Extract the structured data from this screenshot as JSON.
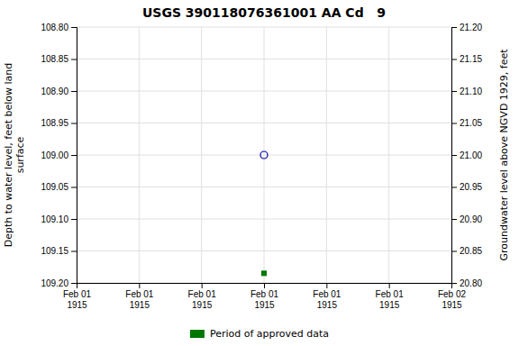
{
  "chart_data": {
    "type": "scatter",
    "title": "USGS 390118076361001 AA Cd   9",
    "ylabel": "Depth to water level, feet below land\nsurface",
    "y2label": "Groundwater level above NGVD 1929, feet",
    "categories": [
      "Feb 01\n1915",
      "Feb 01\n1915",
      "Feb 01\n1915",
      "Feb 01\n1915",
      "Feb 01\n1915",
      "Feb 01\n1915",
      "Feb 02\n1915"
    ],
    "series": [
      {
        "color": "#0000aa",
        "marker": "circle",
        "values": [
          null,
          null,
          null,
          109.0,
          null,
          null,
          null
        ]
      },
      {
        "name": "Period of approved data",
        "color": "#007700",
        "marker": "square",
        "values": [
          null,
          null,
          null,
          109.185,
          null,
          null,
          null
        ]
      }
    ],
    "ylim": [
      109.2,
      108.8
    ],
    "yticks": [
      {
        "value": 108.8,
        "label": "108.80"
      },
      108.85,
      {
        "value": 108.9,
        "label": "108.90"
      },
      108.95,
      {
        "value": 109.0,
        "label": "109.00"
      },
      109.05,
      {
        "value": 109.1,
        "label": "109.10"
      },
      109.15,
      {
        "value": 109.2,
        "label": "109.20"
      }
    ],
    "y2lim": [
      20.8,
      21.2
    ],
    "y2ticks": [
      {
        "value": 21.2,
        "label": "21.20"
      },
      21.15,
      {
        "value": 21.1,
        "label": "21.10"
      },
      21.05,
      {
        "value": 21.0,
        "label": "21.00"
      },
      20.95,
      {
        "value": 20.9,
        "label": "20.90"
      },
      20.85,
      {
        "value": 20.8,
        "label": "20.80"
      }
    ],
    "grid": true,
    "legend": "bottom"
  }
}
